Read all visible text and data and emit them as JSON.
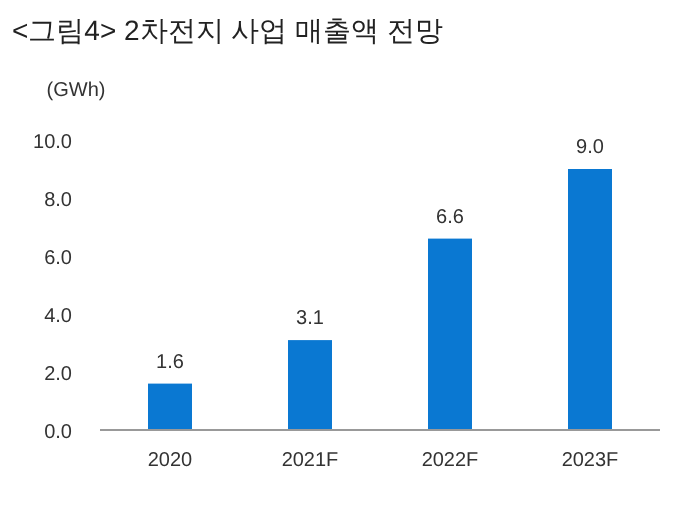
{
  "chart_data": {
    "type": "bar",
    "title": "<그림4> 2차전지 사업 매출액 전망",
    "ylabel": "(GWh)",
    "categories": [
      "2020",
      "2021F",
      "2022F",
      "2023F"
    ],
    "values": [
      1.6,
      3.1,
      6.6,
      9.0
    ],
    "value_labels": [
      "1.6",
      "3.1",
      "6.6",
      "9.0"
    ],
    "color": "#0a78d2",
    "ylim": [
      0,
      10
    ],
    "yticks": [
      {
        "value": 0,
        "label": "0.0"
      },
      {
        "value": 2,
        "label": "2.0"
      },
      {
        "value": 4,
        "label": "4.0"
      },
      {
        "value": 6,
        "label": "6.0"
      },
      {
        "value": 8,
        "label": "8.0"
      },
      {
        "value": 10,
        "label": "10.0"
      }
    ],
    "grid": false
  }
}
